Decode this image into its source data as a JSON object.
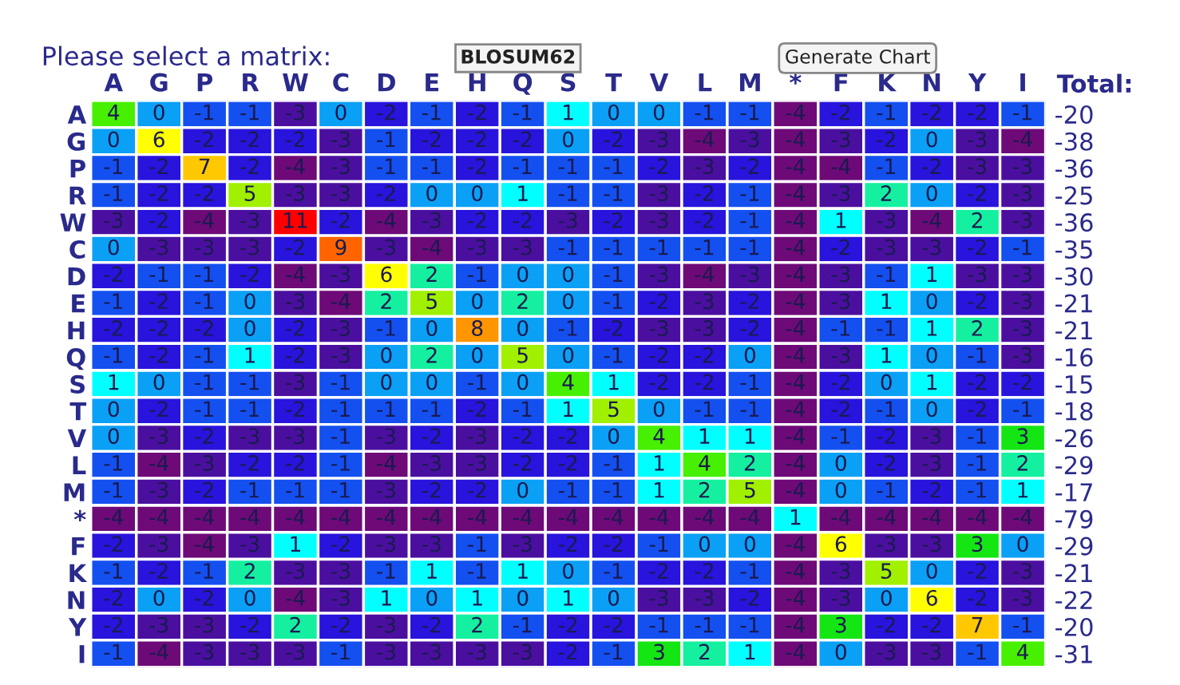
{
  "chart_data": {
    "type": "heatmap",
    "annotations": [
      "Please select a matrix:",
      "BLOSUM62",
      "Generate Chart"
    ],
    "categories": [
      "A",
      "G",
      "P",
      "R",
      "W",
      "C",
      "D",
      "E",
      "H",
      "Q",
      "S",
      "T",
      "V",
      "L",
      "M",
      "*",
      "F",
      "K",
      "N",
      "Y",
      "I"
    ],
    "y_categories": [
      "A",
      "G",
      "P",
      "R",
      "W",
      "C",
      "D",
      "E",
      "H",
      "Q",
      "S",
      "T",
      "V",
      "L",
      "M",
      "*",
      "F",
      "K",
      "N",
      "Y",
      "I"
    ],
    "y2label": "Total:",
    "y2_categories": [
      "-20",
      "-38",
      "-36",
      "-25",
      "-36",
      "-35",
      "-30",
      "-21",
      "-21",
      "-16",
      "-15",
      "-18",
      "-26",
      "-29",
      "-17",
      "-79",
      "-29",
      "-21",
      "-22",
      "-20",
      "-31"
    ],
    "data_labels": true,
    "cells": [
      [
        4,
        0,
        -1,
        -1,
        -3,
        0,
        -2,
        -1,
        -2,
        -1,
        1,
        0,
        0,
        -1,
        -1,
        -4,
        -2,
        -1,
        -2,
        -2,
        -1
      ],
      [
        0,
        6,
        -2,
        -2,
        -2,
        -3,
        -1,
        -2,
        -2,
        -2,
        0,
        -2,
        -3,
        -4,
        -3,
        -4,
        -3,
        -2,
        0,
        -3,
        -4
      ],
      [
        -1,
        -2,
        7,
        -2,
        -4,
        -3,
        -1,
        -1,
        -2,
        -1,
        -1,
        -1,
        -2,
        -3,
        -2,
        -4,
        -4,
        -1,
        -2,
        -3,
        -3
      ],
      [
        -1,
        -2,
        -2,
        5,
        -3,
        -3,
        -2,
        0,
        0,
        1,
        -1,
        -1,
        -3,
        -2,
        -1,
        -4,
        -3,
        2,
        0,
        -2,
        -3
      ],
      [
        -3,
        -2,
        -4,
        -3,
        11,
        -2,
        -4,
        -3,
        -2,
        -2,
        -3,
        -2,
        -3,
        -2,
        -1,
        -4,
        1,
        -3,
        -4,
        2,
        -3
      ],
      [
        0,
        -3,
        -3,
        -3,
        -2,
        9,
        -3,
        -4,
        -3,
        -3,
        -1,
        -1,
        -1,
        -1,
        -1,
        -4,
        -2,
        -3,
        -3,
        -2,
        -1
      ],
      [
        -2,
        -1,
        -1,
        -2,
        -4,
        -3,
        6,
        2,
        -1,
        0,
        0,
        -1,
        -3,
        -4,
        -3,
        -4,
        -3,
        -1,
        1,
        -3,
        -3
      ],
      [
        -1,
        -2,
        -1,
        0,
        -3,
        -4,
        2,
        5,
        0,
        2,
        0,
        -1,
        -2,
        -3,
        -2,
        -4,
        -3,
        1,
        0,
        -2,
        -3
      ],
      [
        -2,
        -2,
        -2,
        0,
        -2,
        -3,
        -1,
        0,
        8,
        0,
        -1,
        -2,
        -3,
        -3,
        -2,
        -4,
        -1,
        -1,
        1,
        2,
        -3
      ],
      [
        -1,
        -2,
        -1,
        1,
        -2,
        -3,
        0,
        2,
        0,
        5,
        0,
        -1,
        -2,
        -2,
        0,
        -4,
        -3,
        1,
        0,
        -1,
        -3
      ],
      [
        1,
        0,
        -1,
        -1,
        -3,
        -1,
        0,
        0,
        -1,
        0,
        4,
        1,
        -2,
        -2,
        -1,
        -4,
        -2,
        0,
        1,
        -2,
        -2
      ],
      [
        0,
        -2,
        -1,
        -1,
        -2,
        -1,
        -1,
        -1,
        -2,
        -1,
        1,
        5,
        0,
        -1,
        -1,
        -4,
        -2,
        -1,
        0,
        -2,
        -1
      ],
      [
        0,
        -3,
        -2,
        -3,
        -3,
        -1,
        -3,
        -2,
        -3,
        -2,
        -2,
        0,
        4,
        1,
        1,
        -4,
        -1,
        -2,
        -3,
        -1,
        3
      ],
      [
        -1,
        -4,
        -3,
        -2,
        -2,
        -1,
        -4,
        -3,
        -3,
        -2,
        -2,
        -1,
        1,
        4,
        2,
        -4,
        0,
        -2,
        -3,
        -1,
        2
      ],
      [
        -1,
        -3,
        -2,
        -1,
        -1,
        -1,
        -3,
        -2,
        -2,
        0,
        -1,
        -1,
        1,
        2,
        5,
        -4,
        0,
        -1,
        -2,
        -1,
        1
      ],
      [
        -4,
        -4,
        -4,
        -4,
        -4,
        -4,
        -4,
        -4,
        -4,
        -4,
        -4,
        -4,
        -4,
        -4,
        -4,
        1,
        -4,
        -4,
        -4,
        -4,
        -4
      ],
      [
        -2,
        -3,
        -4,
        -3,
        1,
        -2,
        -3,
        -3,
        -1,
        -3,
        -2,
        -2,
        -1,
        0,
        0,
        -4,
        6,
        -3,
        -3,
        3,
        0
      ],
      [
        -1,
        -2,
        -1,
        2,
        -3,
        -3,
        -1,
        1,
        -1,
        1,
        0,
        -1,
        -2,
        -2,
        -1,
        -4,
        -3,
        5,
        0,
        -2,
        -3
      ],
      [
        -2,
        0,
        -2,
        0,
        -4,
        -3,
        1,
        0,
        1,
        0,
        1,
        0,
        -3,
        -3,
        -2,
        -4,
        -3,
        0,
        6,
        -2,
        -3
      ],
      [
        -2,
        -3,
        -3,
        -2,
        2,
        -2,
        -3,
        -2,
        2,
        -1,
        -2,
        -2,
        -1,
        -1,
        -1,
        -4,
        3,
        -2,
        -2,
        7,
        -1
      ],
      [
        -1,
        -4,
        -3,
        -3,
        -3,
        -1,
        -3,
        -3,
        -3,
        -3,
        -2,
        -1,
        3,
        2,
        1,
        -4,
        0,
        -3,
        -3,
        -1,
        4
      ]
    ]
  }
}
